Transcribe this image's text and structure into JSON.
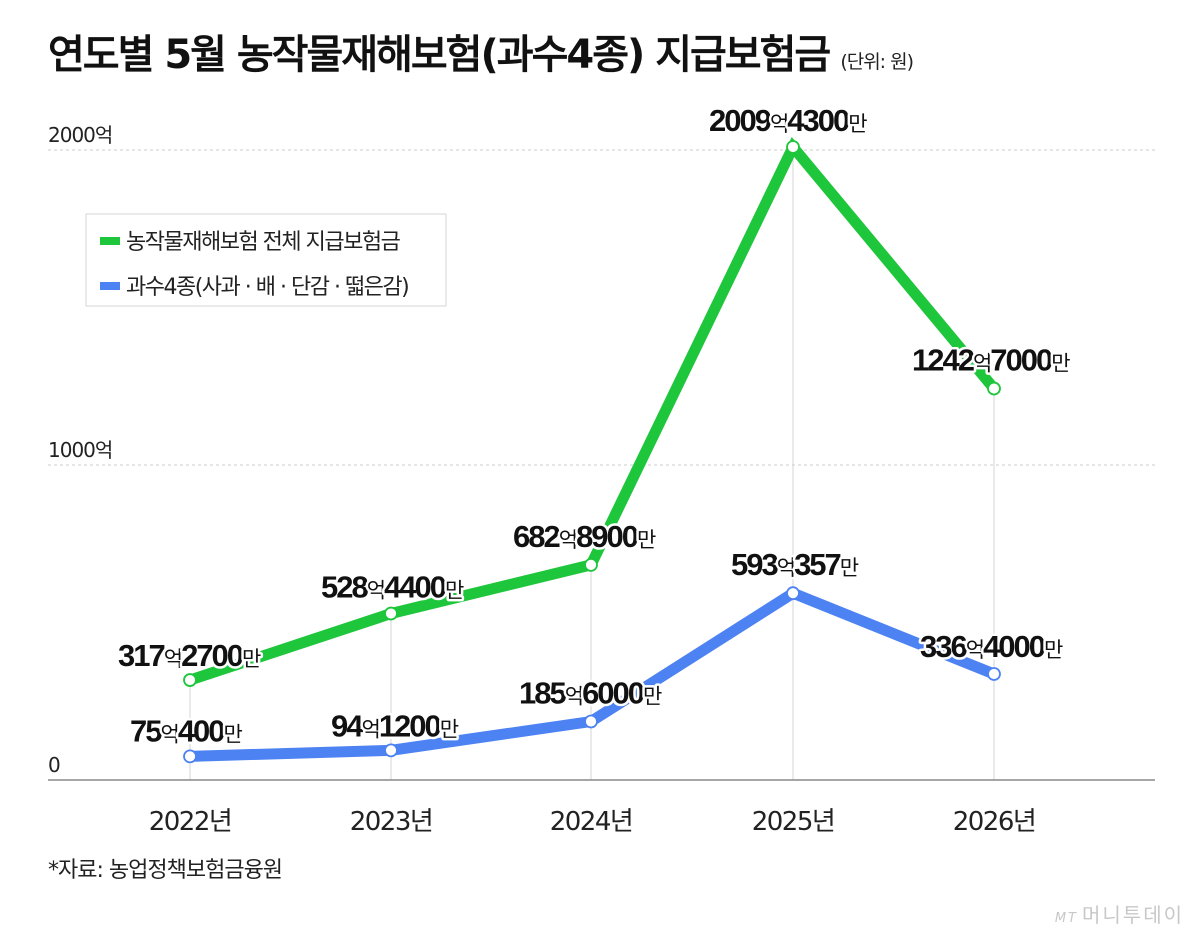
{
  "header": {
    "title": "연도별 5월 농작물재해보험(과수4종) 지급보험금",
    "unit": "(단위: 원)"
  },
  "source": "*자료: 농업정책보험금융원",
  "brand": {
    "mark": "MT",
    "name": "머니투데이"
  },
  "colors": {
    "total": "#1ec63c",
    "fruit": "#4d82f2",
    "grid": "#cccccc",
    "axis": "#888888"
  },
  "chart_data": {
    "type": "line",
    "categories": [
      "2022년",
      "2023년",
      "2024년",
      "2025년",
      "2026년"
    ],
    "y_ticks": [
      {
        "value": 0,
        "label": "0"
      },
      {
        "value": 1000,
        "label": "1000억"
      },
      {
        "value": 2000,
        "label": "2000억"
      }
    ],
    "ylim": [
      0,
      2000
    ],
    "legend_position": "top-left",
    "series": [
      {
        "name": "농작물재해보험 전체 지급보험금",
        "color": "#1ec63c",
        "values": [
          317.27,
          528.44,
          682.89,
          2009.43,
          1242.7
        ],
        "labels": [
          [
            "317",
            "억",
            "2700",
            "만"
          ],
          [
            "528",
            "억",
            "4400",
            "만"
          ],
          [
            "682",
            "억",
            "8900",
            "만"
          ],
          [
            "2009",
            "억",
            "4300",
            "만"
          ],
          [
            "1242",
            "억",
            "7000",
            "만"
          ]
        ]
      },
      {
        "name": "과수4종(사과 · 배 · 단감 · 떫은감)",
        "color": "#4d82f2",
        "values": [
          75.04,
          94.12,
          185.6,
          593.0357,
          336.4
        ],
        "labels": [
          [
            "75",
            "억",
            "400",
            "만"
          ],
          [
            "94",
            "억",
            "1200",
            "만"
          ],
          [
            "185",
            "억",
            "6000",
            "만"
          ],
          [
            "593",
            "억",
            "357",
            "만"
          ],
          [
            "336",
            "억",
            "4000",
            "만"
          ]
        ]
      }
    ]
  }
}
